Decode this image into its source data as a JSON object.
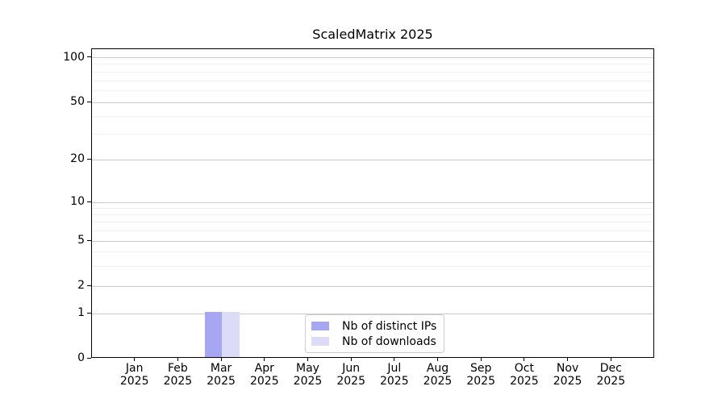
{
  "chart_data": {
    "type": "bar",
    "title": "ScaledMatrix 2025",
    "categories": [
      "Jan 2025",
      "Feb 2025",
      "Mar 2025",
      "Apr 2025",
      "May 2025",
      "Jun 2025",
      "Jul 2025",
      "Aug 2025",
      "Sep 2025",
      "Oct 2025",
      "Nov 2025",
      "Dec 2025"
    ],
    "series": [
      {
        "name": "Nb of distinct IPs",
        "color": "#a6a6f3",
        "values": [
          0,
          0,
          1,
          0,
          0,
          0,
          0,
          0,
          0,
          0,
          0,
          0
        ]
      },
      {
        "name": "Nb of downloads",
        "color": "#dcdcf9",
        "values": [
          0,
          0,
          1,
          0,
          0,
          0,
          0,
          0,
          0,
          0,
          0,
          0
        ]
      }
    ],
    "xlabel": "",
    "ylabel": "",
    "yticks": [
      0,
      1,
      2,
      5,
      10,
      20,
      50,
      100
    ],
    "ylim": [
      0,
      115
    ],
    "yscale": "linear below 1, logarithmic above 1",
    "grid": true,
    "legend_position": "lower center",
    "bar_width_fraction": 0.4
  },
  "colors": {
    "major_grid": "#cbcbcb",
    "minor_grid": "#f0f0f0",
    "axis": "#000000",
    "text": "#000000",
    "legend_border": "#cccccc",
    "background": "#ffffff"
  }
}
